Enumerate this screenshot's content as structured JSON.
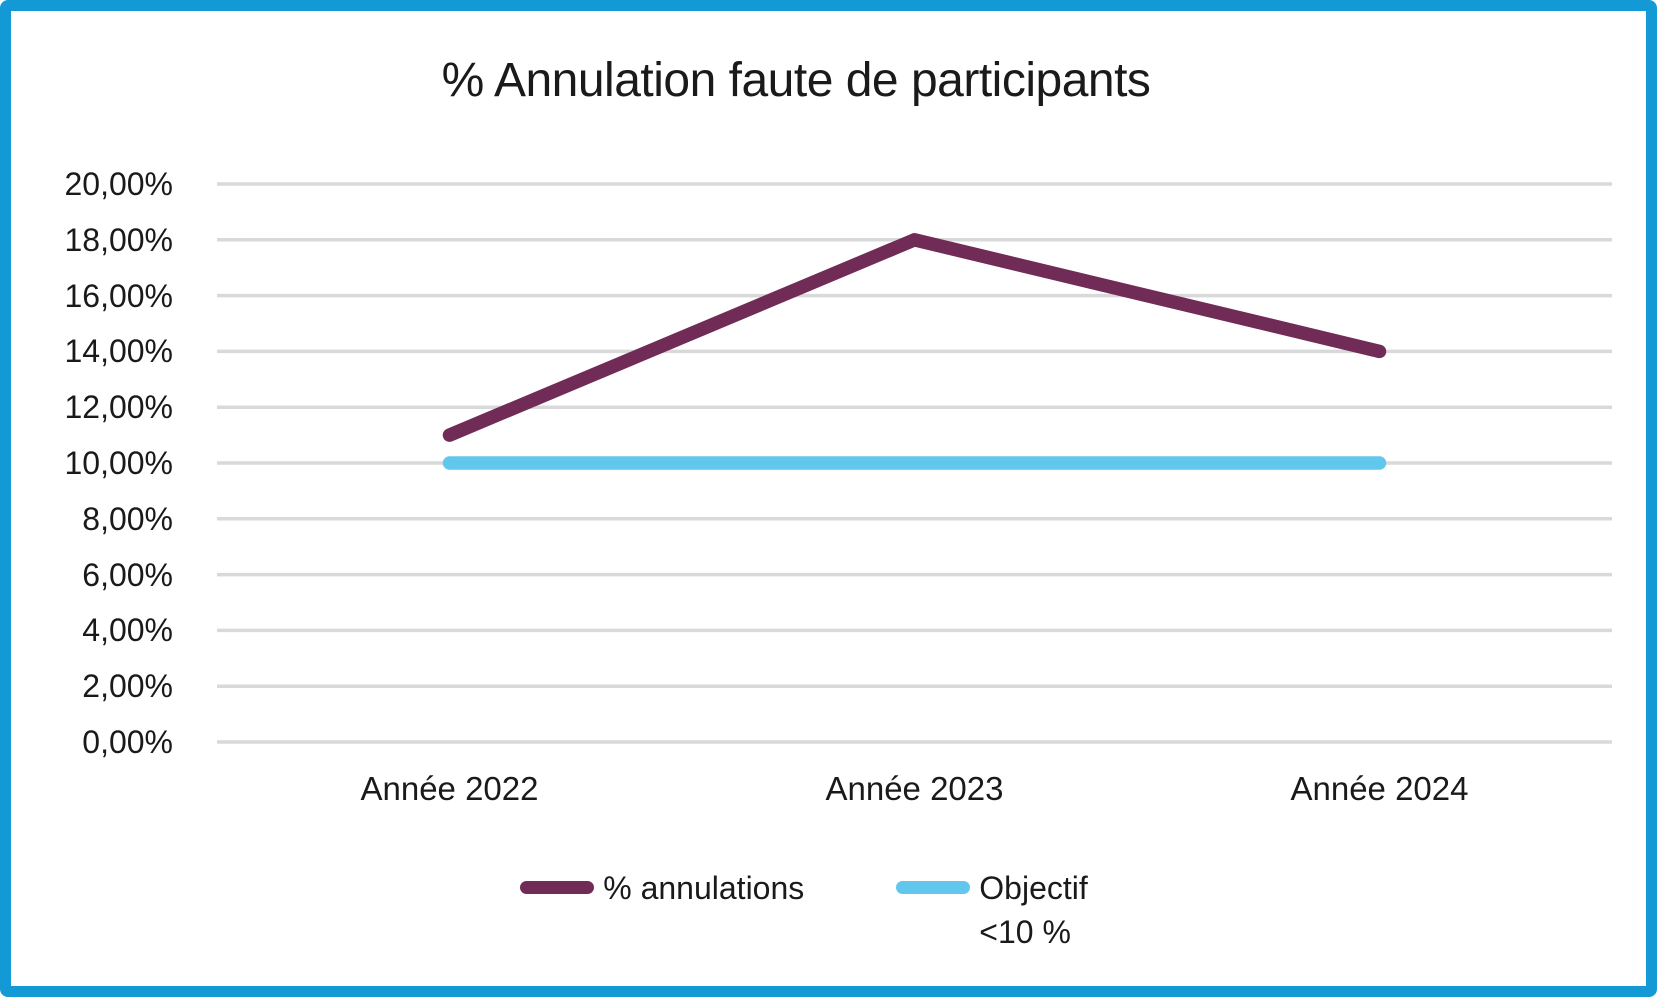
{
  "frame": {
    "border_color": "#1399D6",
    "background_color": "#FFFFFF"
  },
  "chart_data": {
    "type": "line",
    "title": "% Annulation faute de participants",
    "categories": [
      "Année 2022",
      "Année 2023",
      "Année 2024"
    ],
    "series": [
      {
        "name": "% annulations",
        "values": [
          11.0,
          18.0,
          14.0
        ],
        "unit": "%",
        "color": "#702B56"
      },
      {
        "name": "Objectif <10 %",
        "values": [
          10.0,
          10.0,
          10.0
        ],
        "unit": "%",
        "color": "#62C7EC"
      }
    ],
    "xlabel": "",
    "ylabel": "",
    "ylim": [
      0,
      20
    ],
    "ytick_step": 2,
    "ytick_values": [
      0,
      2,
      4,
      6,
      8,
      10,
      12,
      14,
      16,
      18,
      20
    ],
    "ytick_labels": [
      "0,00%",
      "2,00%",
      "4,00%",
      "6,00%",
      "8,00%",
      "10,00%",
      "12,00%",
      "14,00%",
      "16,00%",
      "18,00%",
      "20,00%"
    ],
    "grid": "horizontal",
    "gridline_color": "#D9D9D9",
    "text_color": "#1a1a1a",
    "legend_position": "bottom",
    "legend": [
      {
        "label": "% annulations",
        "lines": [
          "% annulations"
        ],
        "color": "#702B56"
      },
      {
        "label": "Objectif <10 %",
        "lines": [
          "Objectif",
          "<10 %"
        ],
        "color": "#62C7EC"
      }
    ]
  }
}
